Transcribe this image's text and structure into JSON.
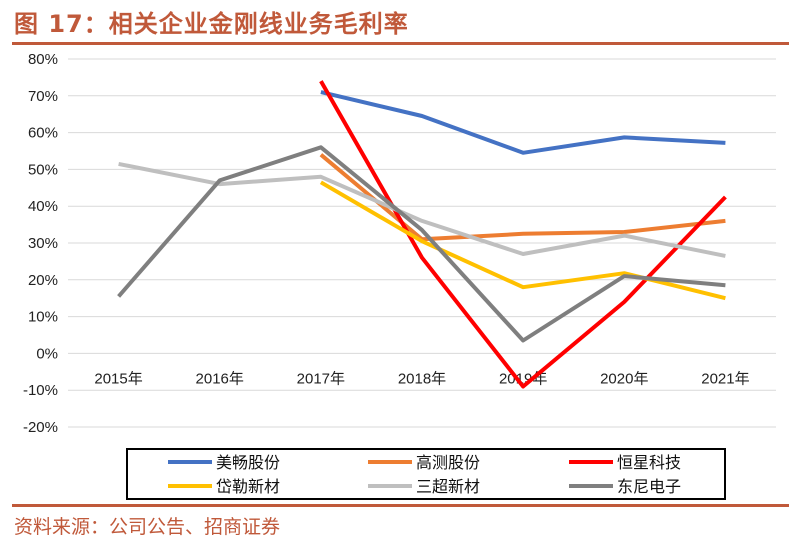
{
  "figure_title": "图 17：相关企业金刚线业务毛利率",
  "source_note": "资料来源：公司公告、招商证券",
  "chart_data": {
    "type": "line",
    "title": "",
    "xlabel": "",
    "ylabel": "",
    "x": [
      "2015年",
      "2016年",
      "2017年",
      "2018年",
      "2019年",
      "2020年",
      "2021年"
    ],
    "ylim": [
      -20,
      80
    ],
    "yticks": [
      -20,
      -10,
      0,
      10,
      20,
      30,
      40,
      50,
      60,
      70,
      80
    ],
    "ytick_labels": [
      "-20%",
      "-10%",
      "0%",
      "10%",
      "20%",
      "30%",
      "40%",
      "50%",
      "60%",
      "70%",
      "80%"
    ],
    "grid": true,
    "legend_position": "bottom",
    "series": [
      {
        "name": "美畅股份",
        "color": "#4472c4",
        "values": [
          null,
          null,
          71.0,
          64.5,
          54.5,
          58.7,
          57.2
        ]
      },
      {
        "name": "高测股份",
        "color": "#ed7d31",
        "values": [
          null,
          null,
          54.0,
          31.0,
          32.5,
          33.0,
          36.0
        ]
      },
      {
        "name": "恒星科技",
        "color": "#ff0000",
        "values": [
          null,
          null,
          74.0,
          26.0,
          -9.0,
          14.0,
          42.5
        ]
      },
      {
        "name": "岱勒新材",
        "color": "#ffc000",
        "values": [
          null,
          null,
          46.5,
          30.5,
          18.0,
          21.8,
          15.0
        ]
      },
      {
        "name": "三超新材",
        "color": "#bfbfbf",
        "values": [
          51.5,
          46.0,
          48.0,
          36.0,
          27.0,
          32.0,
          26.5
        ]
      },
      {
        "name": "东尼电子",
        "color": "#7f7f7f",
        "values": [
          15.5,
          47.0,
          56.0,
          33.5,
          3.5,
          21.0,
          18.5
        ]
      }
    ]
  }
}
